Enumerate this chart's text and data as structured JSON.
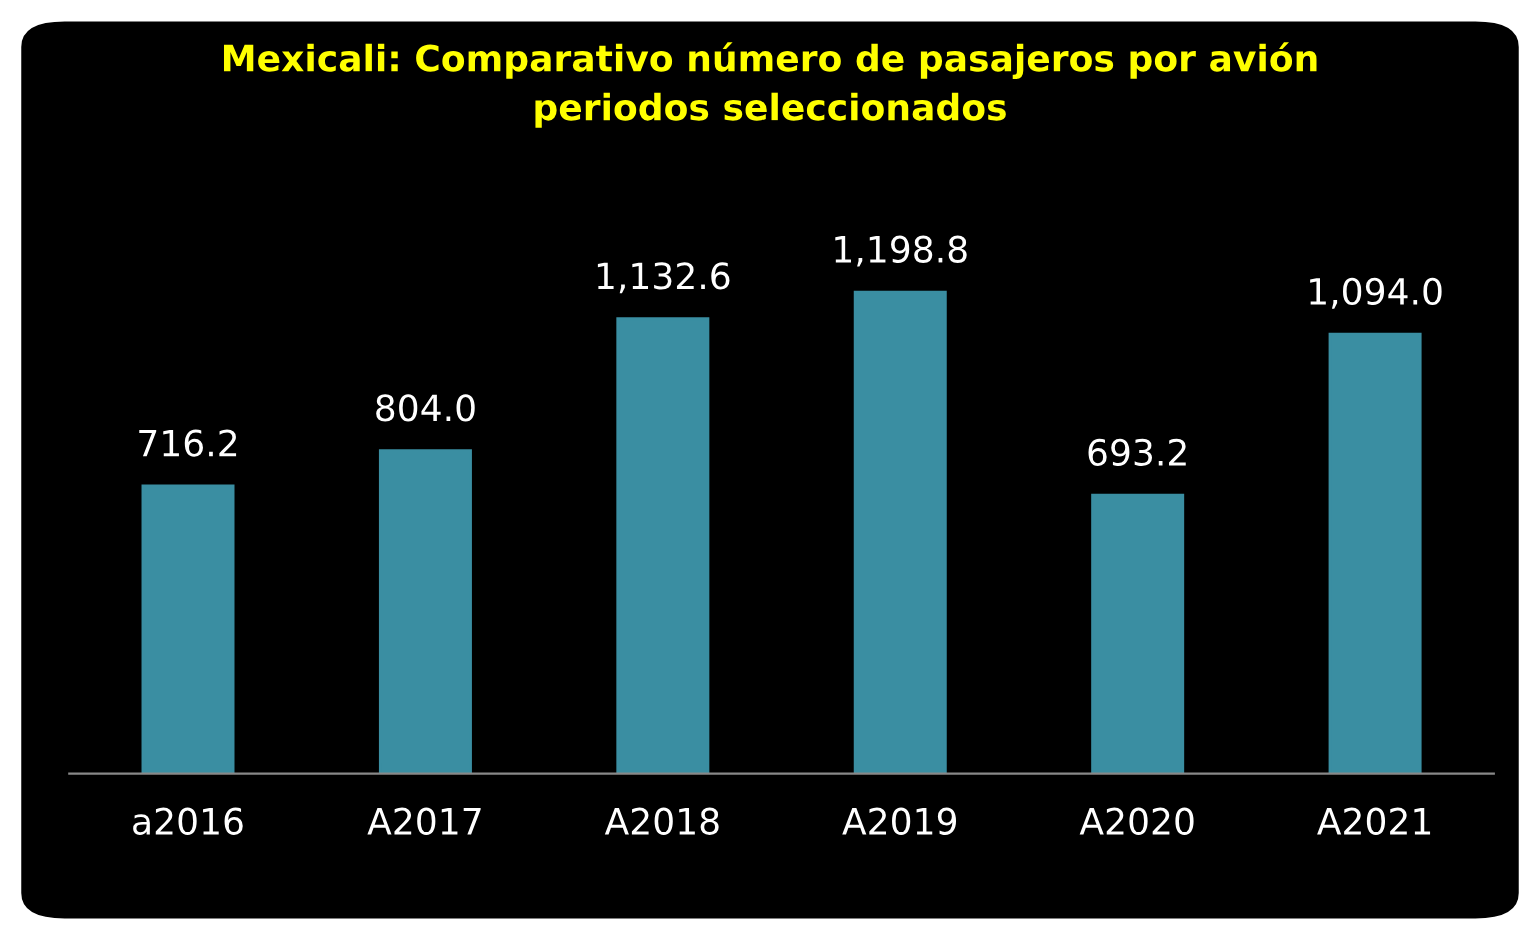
{
  "chart_data": {
    "type": "bar",
    "title": "Mexicali: Comparativo número de pasajeros por avión\nperiodos seleccionados",
    "categories": [
      "a2016",
      "A2017",
      "A2018",
      "A2019",
      "A2020",
      "A2021"
    ],
    "values": [
      716.2,
      804.0,
      1132.6,
      1198.8,
      693.2,
      1094.0
    ],
    "value_labels": [
      "716.2",
      "804.0",
      "1,132.6",
      "1,198.8",
      "693.2",
      "1,094.0"
    ],
    "color": "#3a8ea2"
  }
}
